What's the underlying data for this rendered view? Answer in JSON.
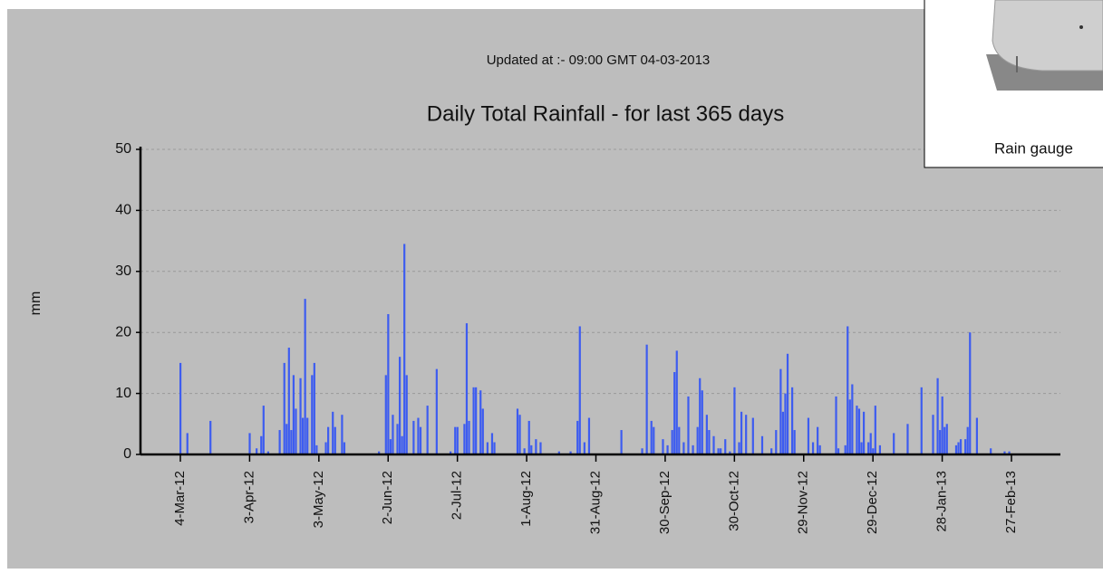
{
  "chart_data": {
    "type": "bar",
    "updated": "Updated at :- 09:00 GMT 04-03-2013",
    "title": "Daily Total Rainfall - for last 365 days",
    "y_label": "mm",
    "color": "#3d5cf0",
    "grid": true,
    "ylim": [
      0,
      50
    ],
    "yticks": [
      0,
      10,
      20,
      30,
      40,
      50
    ],
    "categories": [
      "4-Mar-12",
      null,
      null,
      null,
      null,
      null,
      null,
      null,
      null,
      null,
      null,
      null,
      null,
      null,
      null,
      null,
      null,
      null,
      null,
      null,
      null,
      null,
      null,
      null,
      null,
      null,
      null,
      null,
      null,
      null,
      "3-Apr-12",
      null,
      null,
      null,
      null,
      null,
      null,
      null,
      null,
      null,
      null,
      null,
      null,
      null,
      null,
      null,
      null,
      null,
      null,
      null,
      null,
      null,
      null,
      null,
      null,
      null,
      null,
      null,
      null,
      null,
      "3-May-12",
      null,
      null,
      null,
      null,
      null,
      null,
      null,
      null,
      null,
      null,
      null,
      null,
      null,
      null,
      null,
      null,
      null,
      null,
      null,
      null,
      null,
      null,
      null,
      null,
      null,
      null,
      null,
      null,
      null,
      "2-Jun-12",
      null,
      null,
      null,
      null,
      null,
      null,
      null,
      null,
      null,
      null,
      null,
      null,
      null,
      null,
      null,
      null,
      null,
      null,
      null,
      null,
      null,
      null,
      null,
      null,
      null,
      null,
      null,
      null,
      null,
      "2-Jul-12",
      null,
      null,
      null,
      null,
      null,
      null,
      null,
      null,
      null,
      null,
      null,
      null,
      null,
      null,
      null,
      null,
      null,
      null,
      null,
      null,
      null,
      null,
      null,
      null,
      null,
      null,
      null,
      null,
      null,
      "1-Aug-12",
      null,
      null,
      null,
      null,
      null,
      null,
      null,
      null,
      null,
      null,
      null,
      null,
      null,
      null,
      null,
      null,
      null,
      null,
      null,
      null,
      null,
      null,
      null,
      null,
      null,
      null,
      null,
      null,
      null,
      "31-Aug-12",
      null,
      null,
      null,
      null,
      null,
      null,
      null,
      null,
      null,
      null,
      null,
      null,
      null,
      null,
      null,
      null,
      null,
      null,
      null,
      null,
      null,
      null,
      null,
      null,
      null,
      null,
      null,
      null,
      null,
      "30-Sep-12",
      null,
      null,
      null,
      null,
      null,
      null,
      null,
      null,
      null,
      null,
      null,
      null,
      null,
      null,
      null,
      null,
      null,
      null,
      null,
      null,
      null,
      null,
      null,
      null,
      null,
      null,
      null,
      null,
      null,
      "30-Oct-12",
      null,
      null,
      null,
      null,
      null,
      null,
      null,
      null,
      null,
      null,
      null,
      null,
      null,
      null,
      null,
      null,
      null,
      null,
      null,
      null,
      null,
      null,
      null,
      null,
      null,
      null,
      null,
      null,
      null,
      "29-Nov-12",
      null,
      null,
      null,
      null,
      null,
      null,
      null,
      null,
      null,
      null,
      null,
      null,
      null,
      null,
      null,
      null,
      null,
      null,
      null,
      null,
      null,
      null,
      null,
      null,
      null,
      null,
      null,
      null,
      null,
      "29-Dec-12",
      null,
      null,
      null,
      null,
      null,
      null,
      null,
      null,
      null,
      null,
      null,
      null,
      null,
      null,
      null,
      null,
      null,
      null,
      null,
      null,
      null,
      null,
      null,
      null,
      null,
      null,
      null,
      null,
      null,
      "28-Jan-13",
      null,
      null,
      null,
      null,
      null,
      null,
      null,
      null,
      null,
      null,
      null,
      null,
      null,
      null,
      null,
      null,
      null,
      null,
      null,
      null,
      null,
      null,
      null,
      null,
      null,
      null,
      null,
      null,
      null,
      "27-Feb-13",
      null,
      null,
      null,
      null
    ],
    "values": [
      15,
      0,
      0,
      3.5,
      0,
      0,
      0,
      0,
      0,
      0,
      0,
      0,
      0,
      5.5,
      0,
      0,
      0,
      0,
      0,
      0,
      0,
      0,
      0,
      0,
      0,
      0,
      0,
      0,
      0,
      0,
      3.5,
      0,
      0,
      1,
      0,
      3,
      8,
      0,
      0.5,
      0,
      0,
      0,
      0,
      4,
      0,
      15,
      5,
      17.5,
      4,
      13,
      7.5,
      0,
      12.5,
      6,
      25.5,
      6,
      0,
      13,
      15,
      1.5,
      0,
      0,
      0,
      2,
      4.5,
      0,
      7,
      4.5,
      0,
      0,
      6.5,
      2,
      0,
      0,
      0,
      0,
      0,
      0,
      0,
      0,
      0,
      0,
      0,
      0,
      0,
      0,
      0.5,
      0,
      0,
      13,
      23,
      2.5,
      6.5,
      0,
      5,
      16,
      3,
      34.5,
      13,
      0,
      0,
      5.5,
      0,
      6,
      4.5,
      0,
      0,
      8,
      0,
      0,
      0,
      14,
      0,
      0,
      0,
      0,
      0,
      0.5,
      0,
      4.5,
      4.5,
      0,
      0,
      5,
      21.5,
      5.5,
      0,
      11,
      11,
      0,
      10.5,
      7.5,
      0,
      2,
      0,
      3.5,
      2,
      0,
      0,
      0,
      0,
      0,
      0,
      0,
      0,
      0,
      7.5,
      6.5,
      0,
      1,
      0,
      5.5,
      1.5,
      0,
      2.5,
      0,
      2,
      0,
      0,
      0,
      0,
      0,
      0,
      0,
      0.5,
      0,
      0,
      0,
      0,
      0.5,
      0,
      0,
      5.5,
      21,
      0,
      2,
      0,
      6,
      0,
      0,
      0,
      0,
      0,
      0,
      0,
      0,
      0,
      0,
      0,
      0,
      0,
      4,
      0,
      0,
      0,
      0,
      0,
      0,
      0,
      0,
      1,
      0,
      18,
      0,
      5.5,
      4.5,
      0,
      0,
      0,
      2.5,
      0,
      1.5,
      0,
      4,
      13.5,
      17,
      4.5,
      0,
      2,
      0,
      9.5,
      0,
      1.5,
      0,
      4.5,
      12.5,
      10.5,
      0,
      6.5,
      4,
      0,
      3,
      0,
      1,
      1,
      0,
      2.5,
      0,
      0.5,
      0,
      11,
      0,
      2,
      7,
      0,
      6.5,
      0,
      0,
      6,
      0,
      0,
      0,
      3,
      0,
      0,
      0,
      1,
      0,
      4,
      0,
      14,
      7,
      10,
      16.5,
      0,
      11,
      4,
      0,
      0,
      0,
      0,
      0,
      6,
      0,
      2,
      0,
      4.5,
      1.5,
      0,
      0,
      0,
      0,
      0,
      0,
      9.5,
      1,
      0,
      0,
      1.5,
      21,
      9,
      11.5,
      0,
      8,
      7.5,
      2,
      7,
      0,
      2,
      3.5,
      1,
      8,
      0,
      1.5,
      0,
      0,
      0,
      0,
      0,
      3.5,
      0,
      0,
      0,
      0,
      0,
      5,
      0,
      0,
      0,
      0,
      0,
      11,
      0,
      0,
      0,
      0,
      6.5,
      0,
      12.5,
      4,
      9.5,
      4.5,
      5,
      0,
      0,
      0,
      1.5,
      2,
      2.5,
      0,
      2.5,
      4.5,
      20,
      0,
      0,
      6,
      0,
      0,
      0,
      0,
      0,
      1,
      0,
      0,
      0,
      0,
      0,
      0.5,
      0,
      0.5,
      0,
      0,
      0,
      0,
      0
    ]
  },
  "inset": {
    "caption": "Rain gauge"
  }
}
